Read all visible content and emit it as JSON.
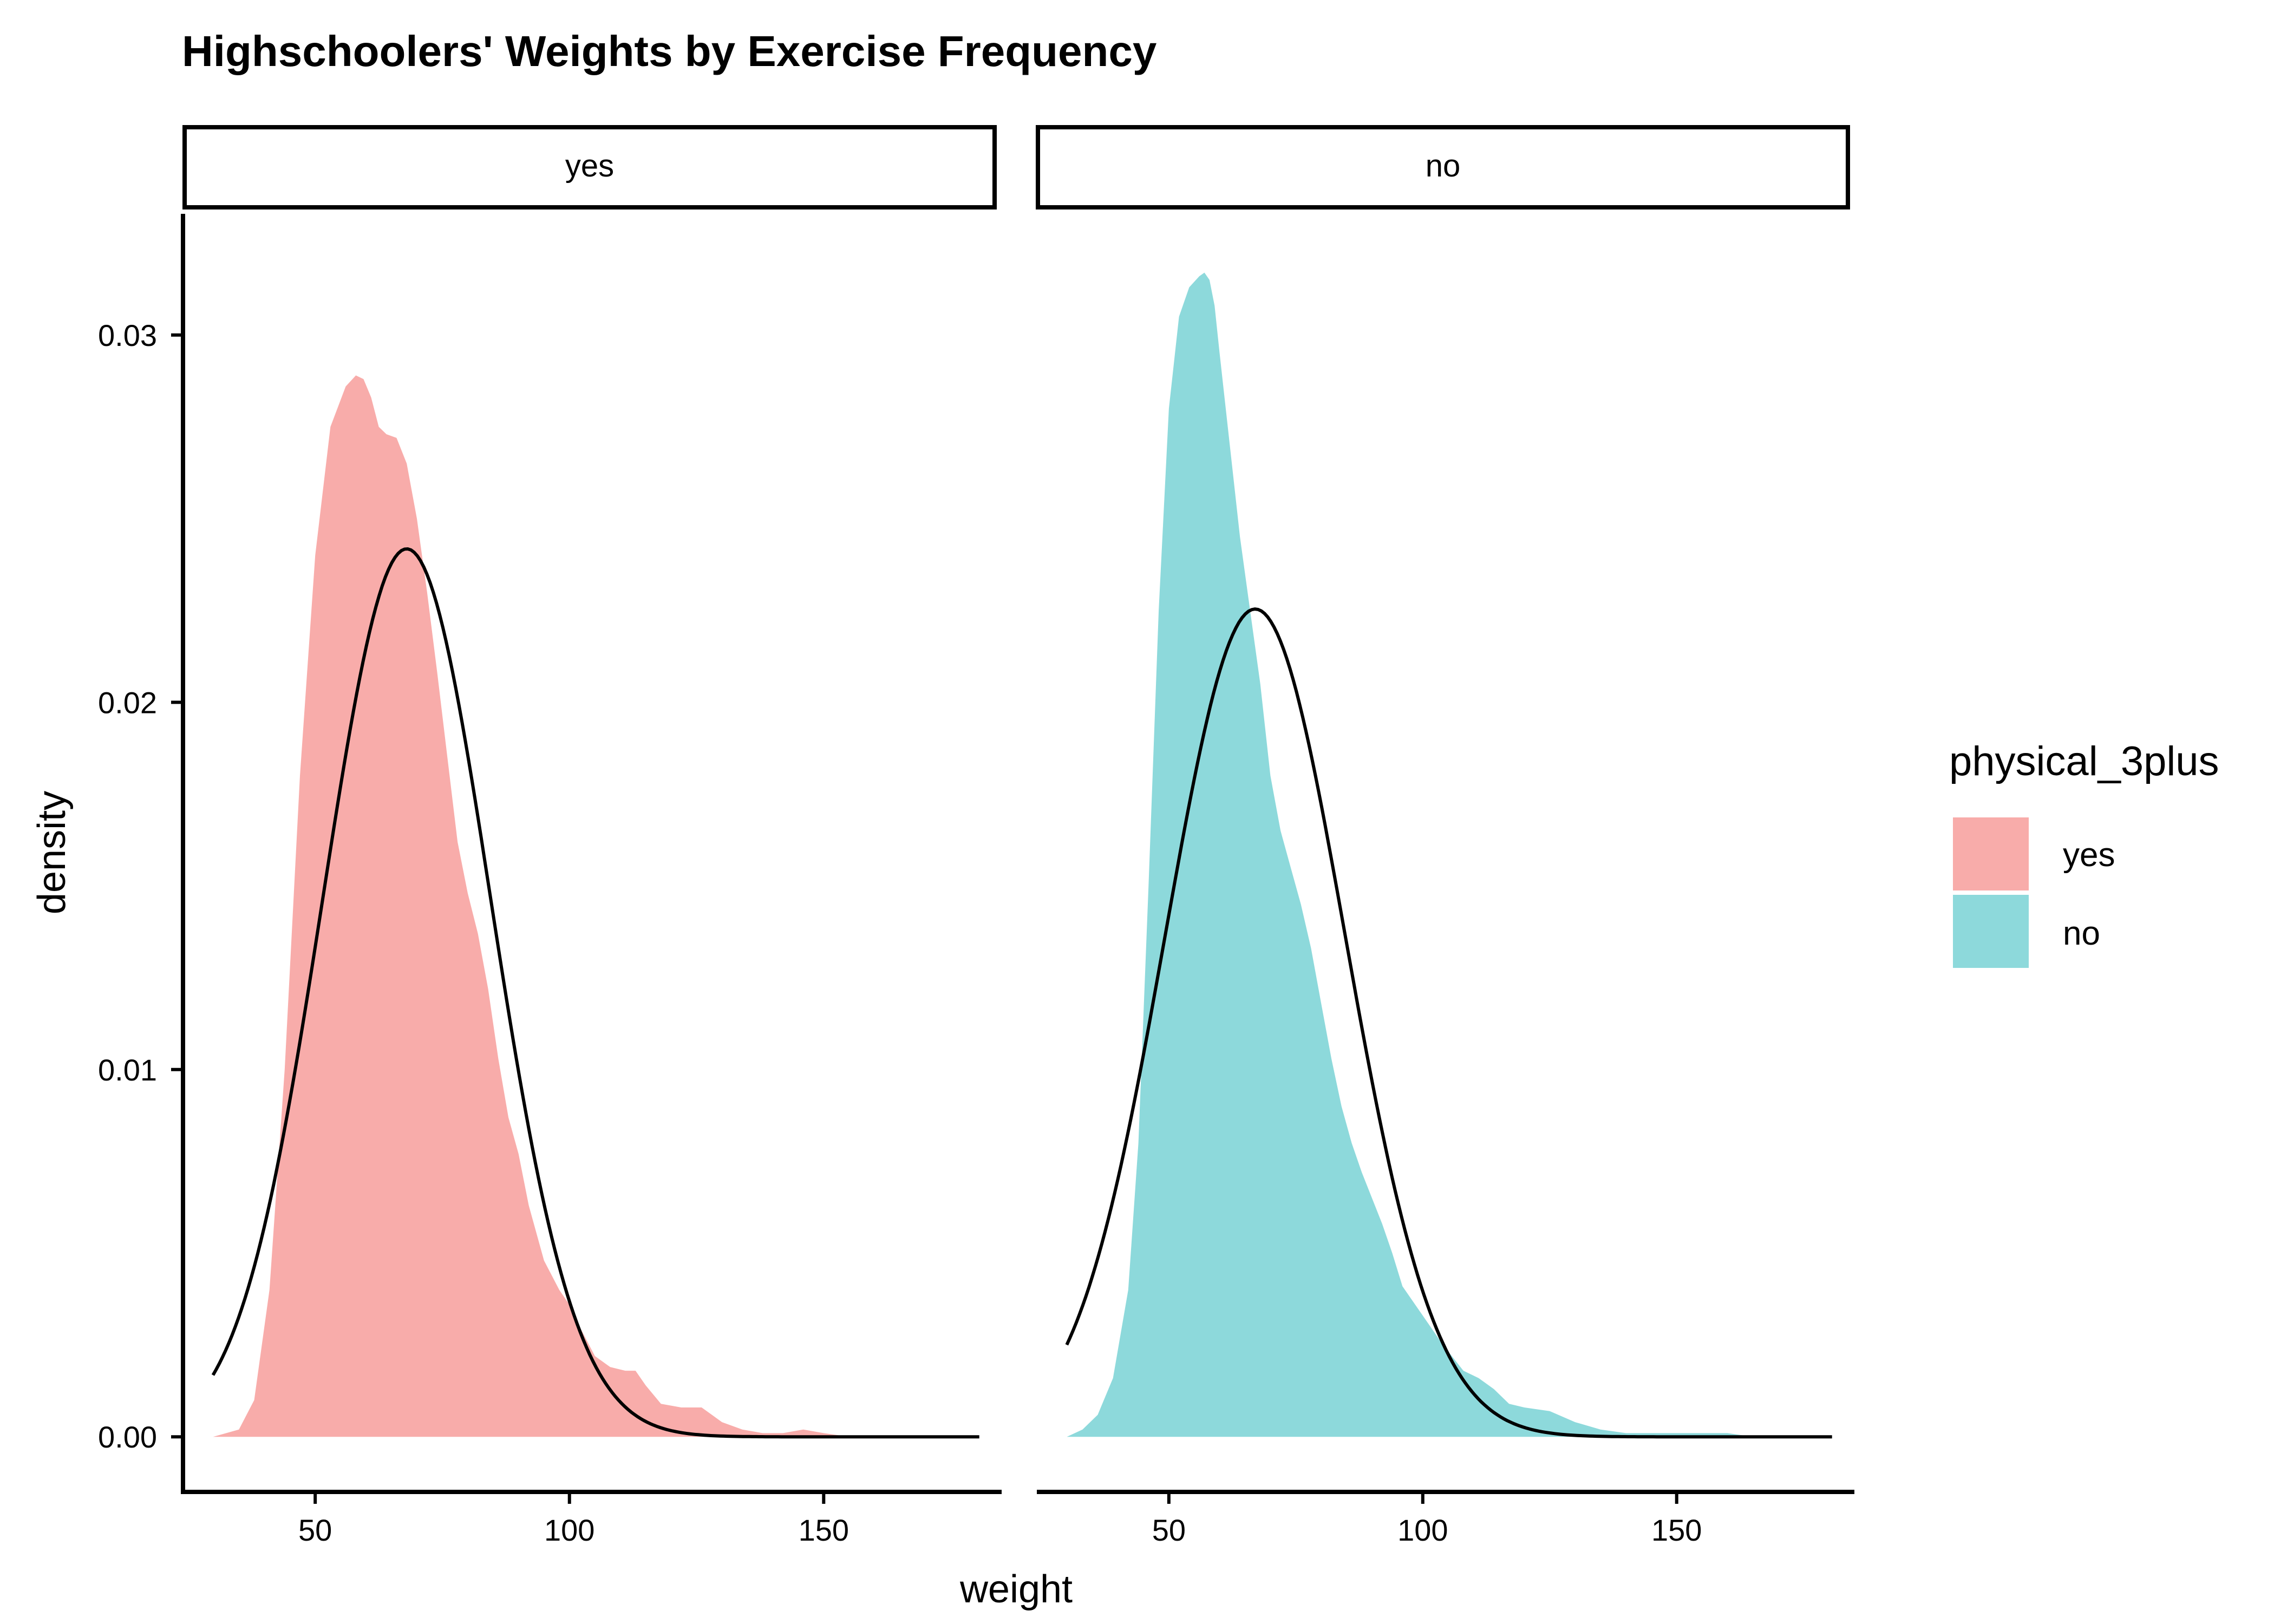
{
  "chart_data": {
    "type": "area",
    "title": "Highschoolers' Weights by Exercise Frequency",
    "xlabel": "weight",
    "ylabel": "density",
    "xlim": [
      24,
      185
    ],
    "ylim": [
      -0.0015,
      0.0333
    ],
    "x_ticks": [
      50,
      100,
      150
    ],
    "y_ticks": [
      0.0,
      0.01,
      0.02,
      0.03
    ],
    "y_tick_labels": [
      "0.00",
      "0.01",
      "0.02",
      "0.03"
    ],
    "grid": false,
    "legend": {
      "title": "physical_3plus",
      "placement": "right",
      "entries": [
        {
          "label": "yes",
          "color": "#F8ACAA"
        },
        {
          "label": "no",
          "color": "#8DD9DB"
        }
      ]
    },
    "facets": [
      {
        "label": "yes",
        "fill_color": "#F8ACAA",
        "density": {
          "x": [
            29.9,
            35,
            38,
            41,
            44,
            47,
            50,
            53,
            56,
            58,
            59.5,
            61,
            62.5,
            64,
            66,
            68,
            70,
            72,
            74,
            76,
            78,
            80,
            82,
            84,
            86,
            88,
            90,
            92,
            95,
            98,
            100,
            102,
            105,
            108,
            111,
            113,
            115,
            118,
            122,
            126,
            128,
            130,
            134,
            138,
            142,
            146,
            150,
            155,
            160.6
          ],
          "y": [
            0.0,
            0.0002,
            0.001,
            0.004,
            0.01,
            0.018,
            0.024,
            0.0275,
            0.0286,
            0.0289,
            0.0288,
            0.0283,
            0.0275,
            0.0273,
            0.0272,
            0.0265,
            0.025,
            0.023,
            0.0208,
            0.0185,
            0.0162,
            0.0148,
            0.0137,
            0.0122,
            0.0103,
            0.0087,
            0.0077,
            0.0063,
            0.0048,
            0.004,
            0.0036,
            0.003,
            0.0022,
            0.0019,
            0.0018,
            0.0018,
            0.0014,
            0.0009,
            0.0008,
            0.0008,
            0.0006,
            0.0004,
            0.0002,
            0.0001,
            0.0001,
            0.0002,
            0.0001,
            0.0,
            0.0
          ]
        },
        "normal_curve": {
          "mean": 68,
          "sd": 16.5,
          "x_range": [
            29.9,
            180.6
          ]
        }
      },
      {
        "label": "no",
        "fill_color": "#8DD9DB",
        "density": {
          "x": [
            29.9,
            33,
            36,
            39,
            42,
            44,
            46,
            48,
            50,
            52,
            54,
            56,
            57,
            58,
            59,
            60,
            62,
            64,
            66,
            68,
            70,
            72,
            74,
            76,
            78,
            80,
            82,
            84,
            86,
            88,
            90,
            92,
            94,
            96,
            100,
            104,
            108,
            111,
            114,
            117,
            120,
            125,
            130,
            135,
            140,
            145,
            150,
            155,
            160,
            165,
            172
          ],
          "y": [
            0.0,
            0.0002,
            0.0006,
            0.0016,
            0.004,
            0.008,
            0.015,
            0.0225,
            0.028,
            0.0305,
            0.0313,
            0.0316,
            0.0317,
            0.0315,
            0.0308,
            0.0295,
            0.027,
            0.0245,
            0.0225,
            0.0205,
            0.018,
            0.0165,
            0.0155,
            0.0145,
            0.0133,
            0.0118,
            0.0103,
            0.009,
            0.008,
            0.0072,
            0.0065,
            0.0058,
            0.005,
            0.0041,
            0.0033,
            0.0025,
            0.0018,
            0.0016,
            0.0013,
            0.0009,
            0.0008,
            0.0007,
            0.0004,
            0.0002,
            0.0001,
            0.0001,
            0.0001,
            0.0001,
            0.0001,
            0.0,
            0.0
          ]
        },
        "normal_curve": {
          "mean": 67,
          "sd": 17.7,
          "x_range": [
            29.9,
            180.6
          ]
        }
      }
    ]
  }
}
